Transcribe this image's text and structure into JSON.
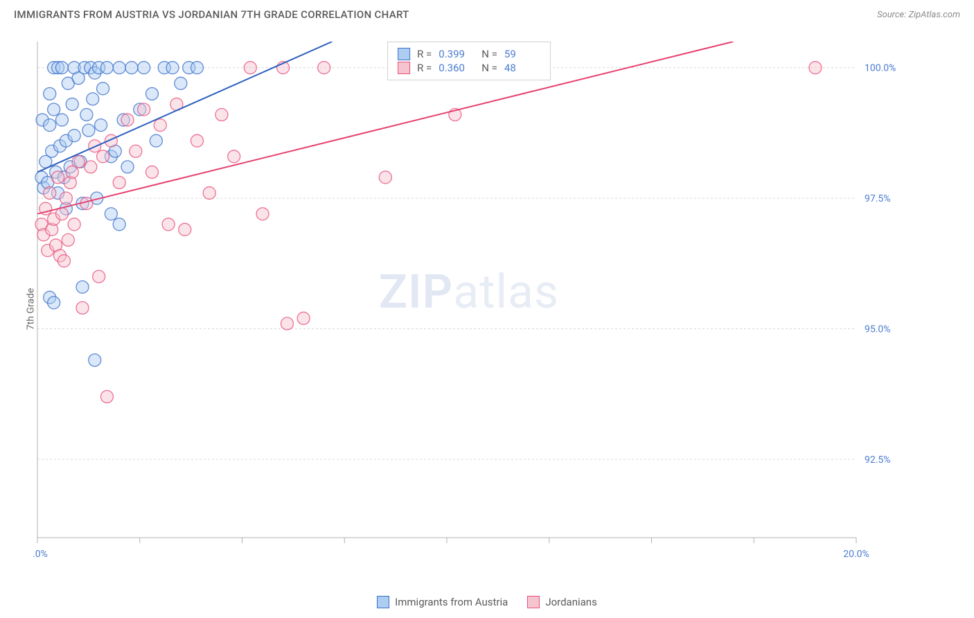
{
  "header": {
    "title": "IMMIGRANTS FROM AUSTRIA VS JORDANIAN 7TH GRADE CORRELATION CHART",
    "source_prefix": "Source: ",
    "source": "ZipAtlas.com"
  },
  "watermark": {
    "bold": "ZIP",
    "light": "atlas"
  },
  "chart": {
    "type": "scatter",
    "y_axis_label": "7th Grade",
    "xlim": [
      0,
      20
    ],
    "ylim": [
      91.0,
      100.5
    ],
    "x_ticks": [
      0,
      2.5,
      5,
      7.5,
      10,
      12.5,
      15,
      17.5,
      20
    ],
    "x_tick_labels": {
      "0": "0.0%",
      "20": "20.0%"
    },
    "y_ticks": [
      92.5,
      95.0,
      97.5,
      100.0
    ],
    "y_tick_labels": [
      "92.5%",
      "95.0%",
      "97.5%",
      "100.0%"
    ],
    "grid_color": "#d8d8d8",
    "axis_color": "#b0b0b0",
    "background_color": "#ffffff",
    "marker_radius": 9,
    "marker_opacity": 0.45,
    "line_width": 2,
    "series": [
      {
        "key": "austria",
        "label": "Immigrants from Austria",
        "fill": "#aecdf2",
        "stroke": "#3b6fc9",
        "line_color": "#2d5fbf",
        "R": "0.399",
        "N": "59",
        "trend": {
          "x1": 0,
          "y1": 98.0,
          "x2": 7.2,
          "y2": 100.5
        },
        "points": [
          [
            0.1,
            97.9
          ],
          [
            0.15,
            97.7
          ],
          [
            0.2,
            98.2
          ],
          [
            0.25,
            97.8
          ],
          [
            0.3,
            99.5
          ],
          [
            0.35,
            98.4
          ],
          [
            0.4,
            100.0
          ],
          [
            0.4,
            99.2
          ],
          [
            0.45,
            98.0
          ],
          [
            0.5,
            97.6
          ],
          [
            0.5,
            100.0
          ],
          [
            0.55,
            98.5
          ],
          [
            0.6,
            99.0
          ],
          [
            0.6,
            100.0
          ],
          [
            0.65,
            97.9
          ],
          [
            0.7,
            98.6
          ],
          [
            0.75,
            99.7
          ],
          [
            0.8,
            98.1
          ],
          [
            0.85,
            99.3
          ],
          [
            0.9,
            98.7
          ],
          [
            0.9,
            100.0
          ],
          [
            1.0,
            99.8
          ],
          [
            1.05,
            98.2
          ],
          [
            1.1,
            97.4
          ],
          [
            1.15,
            100.0
          ],
          [
            1.2,
            99.1
          ],
          [
            1.25,
            98.8
          ],
          [
            1.3,
            100.0
          ],
          [
            1.35,
            99.4
          ],
          [
            1.4,
            99.9
          ],
          [
            1.45,
            97.5
          ],
          [
            1.5,
            100.0
          ],
          [
            1.55,
            98.9
          ],
          [
            1.6,
            99.6
          ],
          [
            1.7,
            100.0
          ],
          [
            1.8,
            98.3
          ],
          [
            1.9,
            98.4
          ],
          [
            2.0,
            100.0
          ],
          [
            2.1,
            99.0
          ],
          [
            2.2,
            98.1
          ],
          [
            2.3,
            100.0
          ],
          [
            2.5,
            99.2
          ],
          [
            2.6,
            100.0
          ],
          [
            2.8,
            99.5
          ],
          [
            2.9,
            98.6
          ],
          [
            3.1,
            100.0
          ],
          [
            3.3,
            100.0
          ],
          [
            3.5,
            99.7
          ],
          [
            3.7,
            100.0
          ],
          [
            3.9,
            100.0
          ],
          [
            0.3,
            95.6
          ],
          [
            0.4,
            95.5
          ],
          [
            1.1,
            95.8
          ],
          [
            1.4,
            94.4
          ],
          [
            0.7,
            97.3
          ],
          [
            1.8,
            97.2
          ],
          [
            2.0,
            97.0
          ],
          [
            0.12,
            99.0
          ],
          [
            0.3,
            98.9
          ]
        ]
      },
      {
        "key": "jordanians",
        "label": "Jordanians",
        "fill": "#f5c4cf",
        "stroke": "#e94f7a",
        "line_color": "#e63f6e",
        "R": "0.360",
        "N": "48",
        "trend": {
          "x1": 0,
          "y1": 97.2,
          "x2": 17.0,
          "y2": 100.5
        },
        "points": [
          [
            0.1,
            97.0
          ],
          [
            0.15,
            96.8
          ],
          [
            0.2,
            97.3
          ],
          [
            0.25,
            96.5
          ],
          [
            0.3,
            97.6
          ],
          [
            0.35,
            96.9
          ],
          [
            0.4,
            97.1
          ],
          [
            0.45,
            96.6
          ],
          [
            0.5,
            97.9
          ],
          [
            0.55,
            96.4
          ],
          [
            0.6,
            97.2
          ],
          [
            0.65,
            96.3
          ],
          [
            0.7,
            97.5
          ],
          [
            0.75,
            96.7
          ],
          [
            0.8,
            97.8
          ],
          [
            0.85,
            98.0
          ],
          [
            0.9,
            97.0
          ],
          [
            1.0,
            98.2
          ],
          [
            1.1,
            95.4
          ],
          [
            1.2,
            97.4
          ],
          [
            1.3,
            98.1
          ],
          [
            1.4,
            98.5
          ],
          [
            1.5,
            96.0
          ],
          [
            1.6,
            98.3
          ],
          [
            1.8,
            98.6
          ],
          [
            2.0,
            97.8
          ],
          [
            2.2,
            99.0
          ],
          [
            2.4,
            98.4
          ],
          [
            2.6,
            99.2
          ],
          [
            2.8,
            98.0
          ],
          [
            3.0,
            98.9
          ],
          [
            3.2,
            97.0
          ],
          [
            3.4,
            99.3
          ],
          [
            3.6,
            96.9
          ],
          [
            3.9,
            98.6
          ],
          [
            4.2,
            97.6
          ],
          [
            4.5,
            99.1
          ],
          [
            4.8,
            98.3
          ],
          [
            5.2,
            100.0
          ],
          [
            5.5,
            97.2
          ],
          [
            6.0,
            100.0
          ],
          [
            6.1,
            95.1
          ],
          [
            6.5,
            95.2
          ],
          [
            7.0,
            100.0
          ],
          [
            8.5,
            97.9
          ],
          [
            10.2,
            99.1
          ],
          [
            19.0,
            100.0
          ],
          [
            1.7,
            93.7
          ]
        ]
      }
    ]
  },
  "legend_top": {
    "r_label": "R =",
    "n_label": "N ="
  },
  "bottom_legend_labels": [
    "Immigrants from Austria",
    "Jordanians"
  ]
}
